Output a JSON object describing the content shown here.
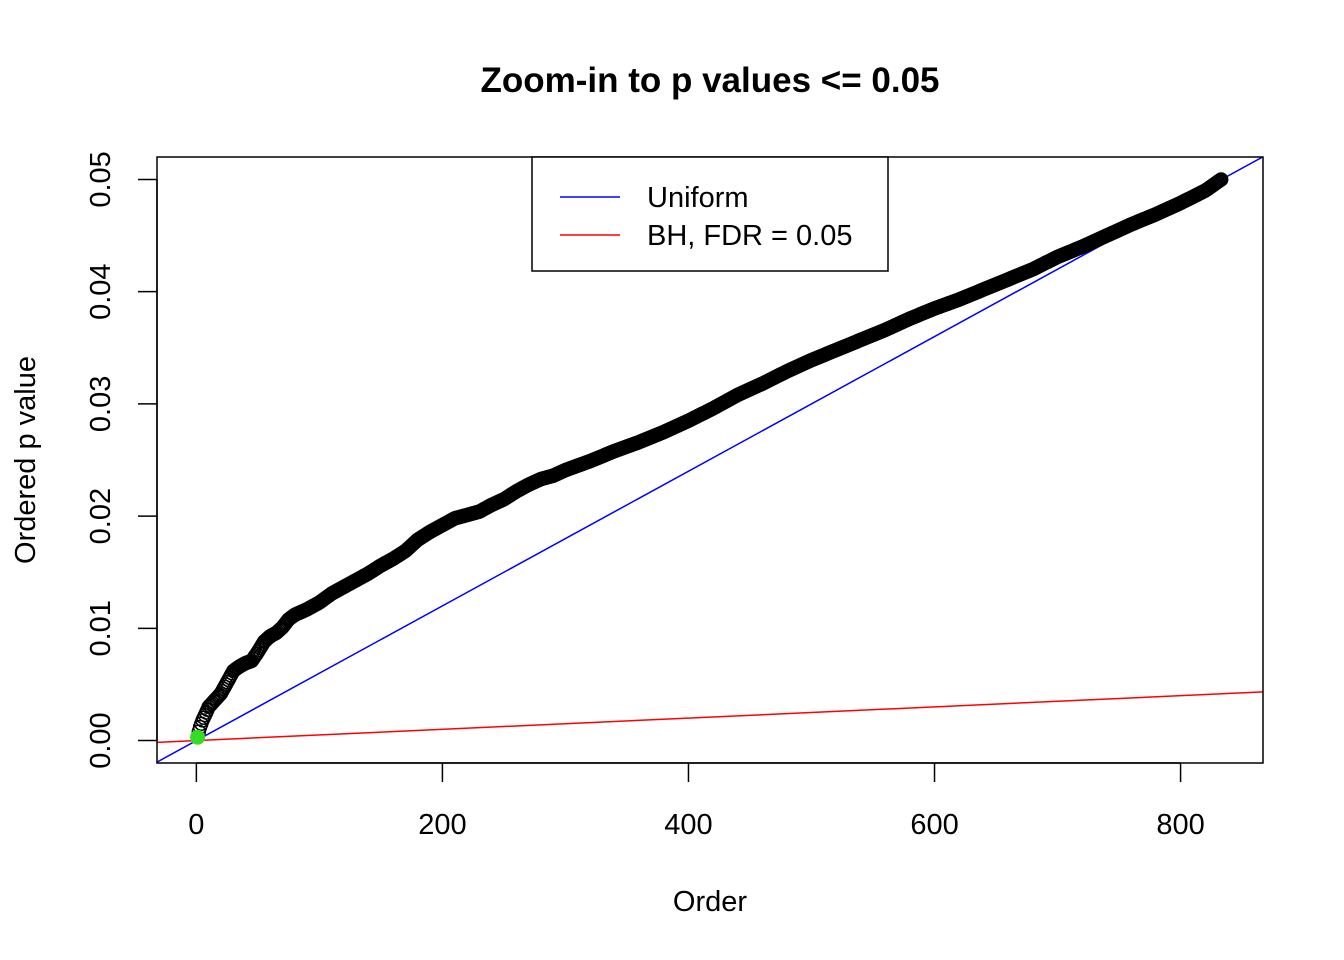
{
  "chart_data": {
    "type": "scatter",
    "title": "Zoom-in to p values <= 0.05",
    "xlabel": "Order",
    "ylabel": "Ordered p value",
    "xlim": [
      -32,
      867
    ],
    "ylim": [
      -0.002,
      0.052
    ],
    "x_ticks": [
      0,
      200,
      400,
      600,
      800
    ],
    "y_ticks": [
      0.0,
      0.01,
      0.02,
      0.03,
      0.04,
      0.05
    ],
    "x_tick_labels": [
      "0",
      "200",
      "400",
      "600",
      "800"
    ],
    "y_tick_labels": [
      "0.00",
      "0.01",
      "0.02",
      "0.03",
      "0.04",
      "0.05"
    ],
    "grid": false,
    "legend_position": "top-center",
    "series": [
      {
        "name": "",
        "kind": "points",
        "color": "#000000",
        "n": 833,
        "x": [
          1,
          2,
          3,
          5,
          8,
          10,
          15,
          20,
          25,
          30,
          35,
          40,
          45,
          50,
          55,
          60,
          65,
          70,
          75,
          80,
          90,
          100,
          110,
          120,
          130,
          140,
          150,
          160,
          170,
          180,
          190,
          200,
          210,
          220,
          230,
          240,
          250,
          260,
          270,
          280,
          290,
          300,
          320,
          340,
          360,
          380,
          400,
          420,
          440,
          460,
          480,
          500,
          520,
          540,
          560,
          580,
          600,
          620,
          640,
          660,
          680,
          700,
          720,
          740,
          760,
          780,
          800,
          820,
          833
        ],
        "y": [
          0.0003,
          0.0008,
          0.0012,
          0.0018,
          0.0025,
          0.003,
          0.0036,
          0.0042,
          0.0052,
          0.0062,
          0.0066,
          0.0069,
          0.0071,
          0.0079,
          0.0088,
          0.0093,
          0.0096,
          0.0101,
          0.0108,
          0.0112,
          0.0117,
          0.0123,
          0.0131,
          0.0137,
          0.0143,
          0.0149,
          0.0156,
          0.0162,
          0.0169,
          0.0179,
          0.0186,
          0.0192,
          0.0198,
          0.0201,
          0.0204,
          0.021,
          0.0215,
          0.0222,
          0.0228,
          0.0233,
          0.0236,
          0.0241,
          0.0249,
          0.0258,
          0.0266,
          0.0275,
          0.0285,
          0.0296,
          0.0308,
          0.0318,
          0.0329,
          0.0339,
          0.0348,
          0.0357,
          0.0366,
          0.0376,
          0.0385,
          0.0393,
          0.0402,
          0.0411,
          0.042,
          0.0431,
          0.044,
          0.045,
          0.046,
          0.0469,
          0.0479,
          0.049,
          0.05
        ]
      },
      {
        "name": "",
        "kind": "highlight-point",
        "color": "#33dd22",
        "x": 1,
        "y": 0.0003
      },
      {
        "name": "Uniform",
        "kind": "line",
        "color": "#0000ff",
        "intercept": 0,
        "slope": 6e-05
      },
      {
        "name": "BH, FDR = 0.05",
        "kind": "line",
        "color": "#ff0000",
        "intercept": 0,
        "slope": 5e-06
      }
    ]
  }
}
